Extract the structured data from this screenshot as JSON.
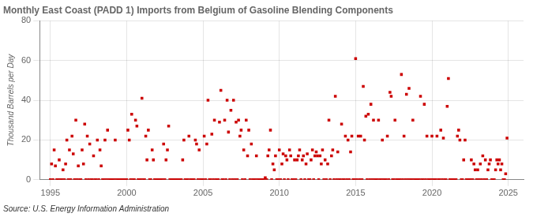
{
  "chart_data": {
    "type": "scatter",
    "title": "Monthly East Coast (PADD 1) Imports from Belgium of Gasoline Blending Components",
    "ylabel": "Thousand Barrels per Day",
    "source": "Source: U.S. Energy Information Administration",
    "color": "#cc0000",
    "marker": "square",
    "grid": true,
    "xlim": [
      1994.3,
      2026.0
    ],
    "xticks": [
      1995,
      2000,
      2005,
      2010,
      2015,
      2020,
      2025
    ],
    "ylim": [
      0,
      80
    ],
    "yticks": [
      0,
      20,
      40,
      60,
      80
    ],
    "x": [
      1995.0,
      1995.08,
      1995.17,
      1995.25,
      1995.33,
      1995.42,
      1995.5,
      1995.58,
      1995.67,
      1995.75,
      1995.83,
      1995.92,
      1996.0,
      1996.08,
      1996.17,
      1996.25,
      1996.33,
      1996.42,
      1996.5,
      1996.58,
      1996.67,
      1996.75,
      1996.83,
      1996.92,
      1997.0,
      1997.08,
      1997.17,
      1997.25,
      1997.33,
      1997.42,
      1997.5,
      1997.58,
      1997.67,
      1997.75,
      1997.83,
      1997.92,
      1998.0,
      1998.08,
      1998.17,
      1998.25,
      1998.33,
      1998.42,
      1998.5,
      1998.58,
      1998.67,
      1998.75,
      1998.83,
      1998.92,
      1999.0,
      1999.08,
      1999.17,
      1999.25,
      1999.33,
      1999.42,
      1999.5,
      1999.58,
      1999.67,
      1999.75,
      1999.83,
      1999.92,
      2000.0,
      2000.08,
      2000.17,
      2000.25,
      2000.33,
      2000.42,
      2000.5,
      2000.58,
      2000.67,
      2000.75,
      2000.83,
      2000.92,
      2001.0,
      2001.08,
      2001.17,
      2001.25,
      2001.33,
      2001.42,
      2001.5,
      2001.58,
      2001.67,
      2001.75,
      2001.83,
      2001.92,
      2002.0,
      2002.08,
      2002.17,
      2002.25,
      2002.33,
      2002.42,
      2002.5,
      2002.58,
      2002.67,
      2002.75,
      2002.83,
      2002.92,
      2003.0,
      2003.08,
      2003.17,
      2003.25,
      2003.33,
      2003.42,
      2003.5,
      2003.58,
      2003.67,
      2003.75,
      2003.83,
      2003.92,
      2004.0,
      2004.08,
      2004.17,
      2004.25,
      2004.33,
      2004.42,
      2004.5,
      2004.58,
      2004.67,
      2004.75,
      2004.83,
      2004.92,
      2005.0,
      2005.08,
      2005.17,
      2005.25,
      2005.33,
      2005.42,
      2005.5,
      2005.58,
      2005.67,
      2005.75,
      2005.83,
      2005.92,
      2006.0,
      2006.08,
      2006.17,
      2006.25,
      2006.33,
      2006.42,
      2006.5,
      2006.58,
      2006.67,
      2006.75,
      2006.83,
      2006.92,
      2007.0,
      2007.08,
      2007.17,
      2007.25,
      2007.33,
      2007.42,
      2007.5,
      2007.58,
      2007.67,
      2007.75,
      2007.83,
      2007.92,
      2008.0,
      2008.08,
      2008.17,
      2008.25,
      2008.33,
      2008.42,
      2008.5,
      2008.58,
      2008.67,
      2008.75,
      2008.83,
      2008.92,
      2009.0,
      2009.08,
      2009.17,
      2009.25,
      2009.33,
      2009.42,
      2009.5,
      2009.58,
      2009.67,
      2009.75,
      2009.83,
      2009.92,
      2010.0,
      2010.08,
      2010.17,
      2010.25,
      2010.33,
      2010.42,
      2010.5,
      2010.58,
      2010.67,
      2010.75,
      2010.83,
      2010.92,
      2011.0,
      2011.08,
      2011.17,
      2011.25,
      2011.33,
      2011.42,
      2011.5,
      2011.58,
      2011.67,
      2011.75,
      2011.83,
      2011.92,
      2012.0,
      2012.08,
      2012.17,
      2012.25,
      2012.33,
      2012.42,
      2012.5,
      2012.58,
      2012.67,
      2012.75,
      2012.83,
      2012.92,
      2013.0,
      2013.08,
      2013.17,
      2013.25,
      2013.33,
      2013.42,
      2013.5,
      2013.58,
      2013.67,
      2013.75,
      2013.83,
      2013.92,
      2014.0,
      2014.08,
      2014.17,
      2014.25,
      2014.33,
      2014.42,
      2014.5,
      2014.58,
      2014.67,
      2014.75,
      2014.83,
      2014.92,
      2015.0,
      2015.08,
      2015.17,
      2015.25,
      2015.33,
      2015.42,
      2015.5,
      2015.58,
      2015.67,
      2015.75,
      2015.83,
      2015.92,
      2016.0,
      2016.08,
      2016.17,
      2016.25,
      2016.33,
      2016.42,
      2016.5,
      2016.58,
      2016.67,
      2016.75,
      2016.83,
      2016.92,
      2017.0,
      2017.08,
      2017.17,
      2017.25,
      2017.33,
      2017.42,
      2017.5,
      2017.58,
      2017.67,
      2017.75,
      2017.83,
      2017.92,
      2018.0,
      2018.08,
      2018.17,
      2018.25,
      2018.33,
      2018.42,
      2018.5,
      2018.58,
      2018.67,
      2018.75,
      2018.83,
      2018.92,
      2019.0,
      2019.08,
      2019.17,
      2019.25,
      2019.33,
      2019.42,
      2019.5,
      2019.58,
      2019.67,
      2019.75,
      2019.83,
      2019.92,
      2020.0,
      2020.08,
      2020.17,
      2020.25,
      2020.33,
      2020.42,
      2020.5,
      2020.58,
      2020.67,
      2020.75,
      2020.83,
      2020.92,
      2021.0,
      2021.08,
      2021.17,
      2021.25,
      2021.33,
      2021.42,
      2021.5,
      2021.58,
      2021.67,
      2021.75,
      2021.83,
      2021.92,
      2022.0,
      2022.08,
      2022.17,
      2022.25,
      2022.33,
      2022.42,
      2022.5,
      2022.58,
      2022.67,
      2022.75,
      2022.83,
      2022.92,
      2023.0,
      2023.08,
      2023.17,
      2023.25,
      2023.33,
      2023.42,
      2023.5,
      2023.58,
      2023.67,
      2023.75,
      2023.83,
      2023.92,
      2024.0,
      2024.08,
      2024.17,
      2024.25,
      2024.33,
      2024.42,
      2024.5,
      2024.58,
      2024.67,
      2024.75,
      2024.83,
      2024.92
    ],
    "values": [
      0,
      8,
      0,
      15,
      7,
      0,
      0,
      10,
      0,
      0,
      5,
      0,
      8,
      20,
      0,
      15,
      0,
      22,
      13,
      0,
      30,
      0,
      7,
      0,
      0,
      15,
      8,
      28,
      0,
      22,
      0,
      18,
      0,
      0,
      12,
      0,
      0,
      20,
      0,
      15,
      7,
      0,
      0,
      20,
      0,
      25,
      0,
      0,
      0,
      0,
      0,
      20,
      0,
      0,
      0,
      0,
      0,
      0,
      0,
      0,
      0,
      25,
      20,
      0,
      33,
      0,
      0,
      30,
      27,
      0,
      0,
      0,
      41,
      0,
      0,
      22,
      10,
      25,
      0,
      0,
      15,
      10,
      0,
      0,
      0,
      0,
      0,
      0,
      0,
      18,
      0,
      10,
      15,
      27,
      0,
      0,
      0,
      0,
      0,
      0,
      0,
      0,
      0,
      0,
      10,
      20,
      0,
      0,
      0,
      22,
      0,
      0,
      0,
      0,
      20,
      18,
      0,
      15,
      0,
      0,
      0,
      22,
      0,
      18,
      40,
      0,
      0,
      23,
      0,
      30,
      0,
      0,
      0,
      29,
      45,
      0,
      0,
      30,
      0,
      40,
      24,
      0,
      35,
      0,
      40,
      0,
      29,
      0,
      30,
      22,
      25,
      0,
      15,
      0,
      30,
      12,
      25,
      0,
      18,
      0,
      0,
      0,
      12,
      0,
      0,
      0,
      0,
      0,
      0,
      1,
      0,
      12,
      15,
      25,
      0,
      8,
      5,
      12,
      0,
      0,
      15,
      0,
      8,
      13,
      0,
      12,
      10,
      0,
      15,
      12,
      0,
      0,
      10,
      0,
      10,
      12,
      15,
      0,
      10,
      12,
      0,
      8,
      13,
      0,
      0,
      10,
      15,
      0,
      12,
      14,
      12,
      0,
      12,
      8,
      15,
      0,
      10,
      0,
      8,
      30,
      0,
      12,
      15,
      0,
      42,
      0,
      14,
      0,
      0,
      28,
      0,
      0,
      22,
      0,
      20,
      0,
      14,
      22,
      0,
      0,
      61,
      0,
      22,
      0,
      22,
      0,
      47,
      20,
      32,
      0,
      33,
      0,
      38,
      0,
      30,
      0,
      0,
      0,
      30,
      0,
      0,
      20,
      0,
      0,
      0,
      22,
      0,
      44,
      42,
      0,
      0,
      30,
      0,
      0,
      0,
      0,
      53,
      0,
      22,
      0,
      43,
      0,
      46,
      0,
      0,
      30,
      0,
      0,
      0,
      0,
      0,
      42,
      0,
      0,
      38,
      0,
      22,
      0,
      0,
      0,
      22,
      0,
      0,
      0,
      22,
      0,
      0,
      25,
      0,
      21,
      0,
      0,
      37,
      51,
      0,
      0,
      0,
      0,
      0,
      0,
      22,
      25,
      20,
      0,
      0,
      10,
      20,
      0,
      0,
      0,
      0,
      10,
      0,
      8,
      5,
      0,
      5,
      0,
      8,
      0,
      12,
      0,
      10,
      0,
      5,
      8,
      10,
      0,
      0,
      0,
      5,
      10,
      8,
      10,
      5,
      8,
      0,
      0,
      3,
      21
    ]
  }
}
